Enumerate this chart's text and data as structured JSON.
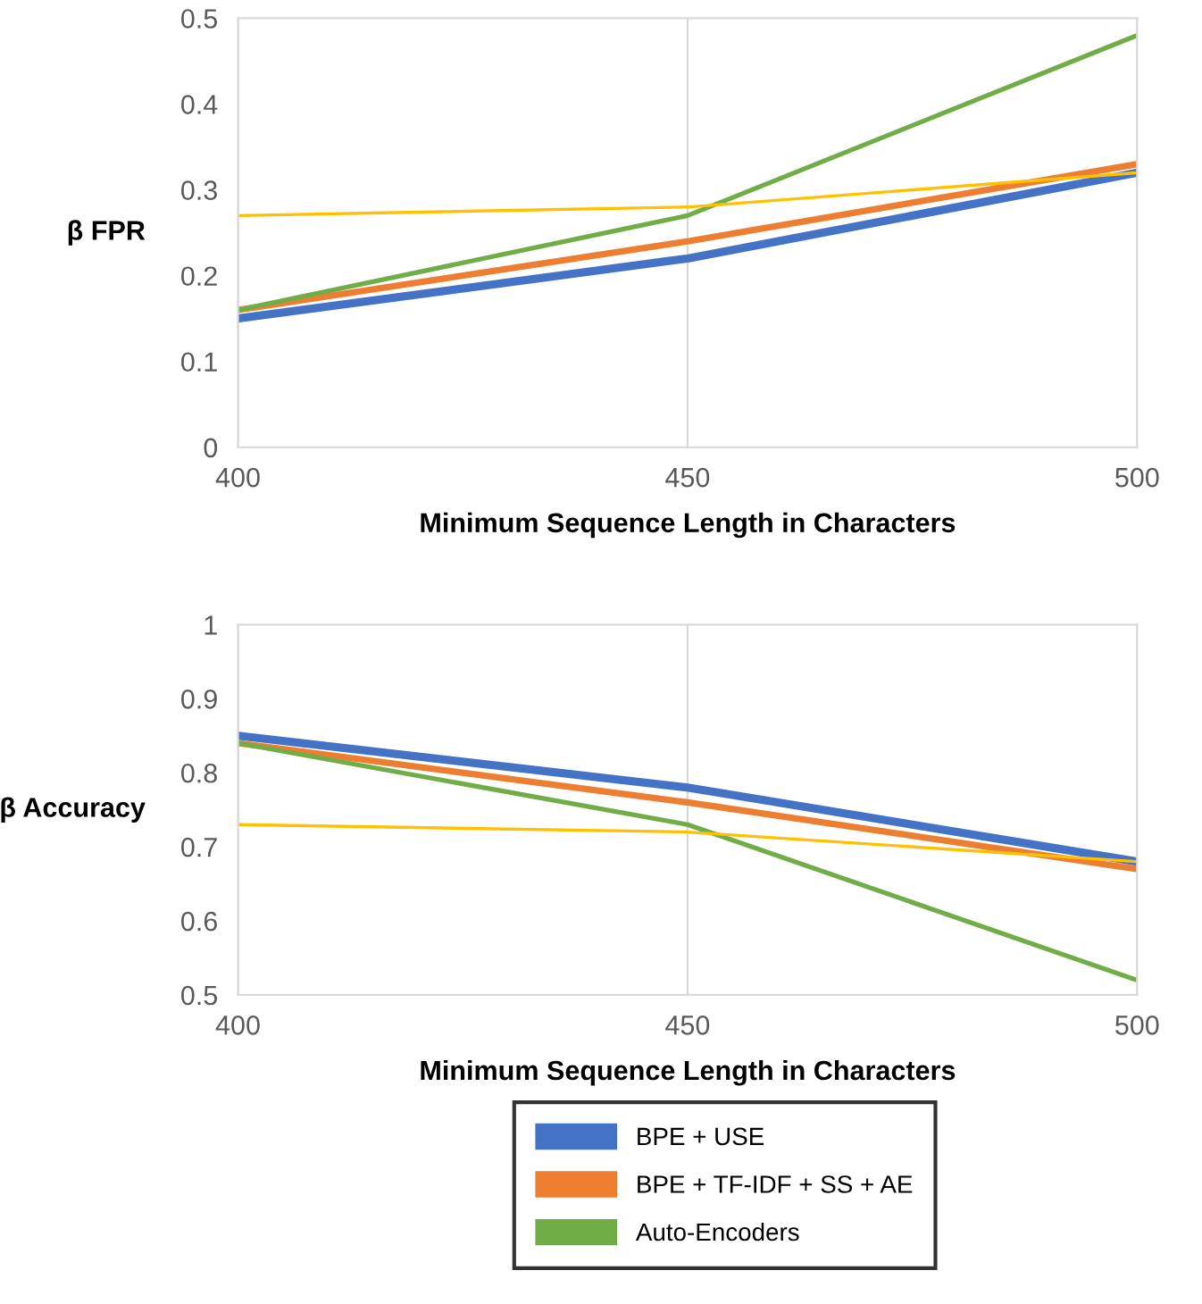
{
  "chart_data": [
    {
      "type": "line",
      "ylabel": "β FPR",
      "xlabel": "Minimum Sequence Length in Characters",
      "x": [
        400,
        450,
        500
      ],
      "xlim": [
        400,
        500
      ],
      "xticks": [
        400,
        450,
        500
      ],
      "ylim": [
        0,
        0.5
      ],
      "yticks": [
        0,
        0.1,
        0.2,
        0.3,
        0.4,
        0.5
      ],
      "grid": "x",
      "legend": "bottom",
      "series": [
        {
          "name": "BPE + USE",
          "color": "#4472c4",
          "values": [
            0.15,
            0.22,
            0.32
          ]
        },
        {
          "name": "BPE + TF-IDF + SS + AE",
          "color": "#ed7d31",
          "values": [
            0.16,
            0.24,
            0.33
          ]
        },
        {
          "name": "Auto-Encoders",
          "color": "#70ad47",
          "values": [
            0.16,
            0.27,
            0.48
          ]
        },
        {
          "color": "#ffc000",
          "values": [
            0.27,
            0.28,
            0.32
          ]
        }
      ]
    },
    {
      "type": "line",
      "ylabel": "β Accuracy",
      "xlabel": "Minimum Sequence Length in Characters",
      "x": [
        400,
        450,
        500
      ],
      "xlim": [
        400,
        500
      ],
      "xticks": [
        400,
        450,
        500
      ],
      "ylim": [
        0.5,
        1
      ],
      "yticks": [
        0.5,
        0.6,
        0.7,
        0.8,
        0.9,
        1
      ],
      "grid": "x",
      "series": [
        {
          "color": "#4472c4",
          "values": [
            0.85,
            0.78,
            0.68
          ]
        },
        {
          "color": "#ed7d31",
          "values": [
            0.84,
            0.76,
            0.67
          ]
        },
        {
          "color": "#70ad47",
          "values": [
            0.84,
            0.73,
            0.52
          ]
        },
        {
          "color": "#ffc000",
          "values": [
            0.73,
            0.72,
            0.68
          ]
        }
      ]
    }
  ]
}
